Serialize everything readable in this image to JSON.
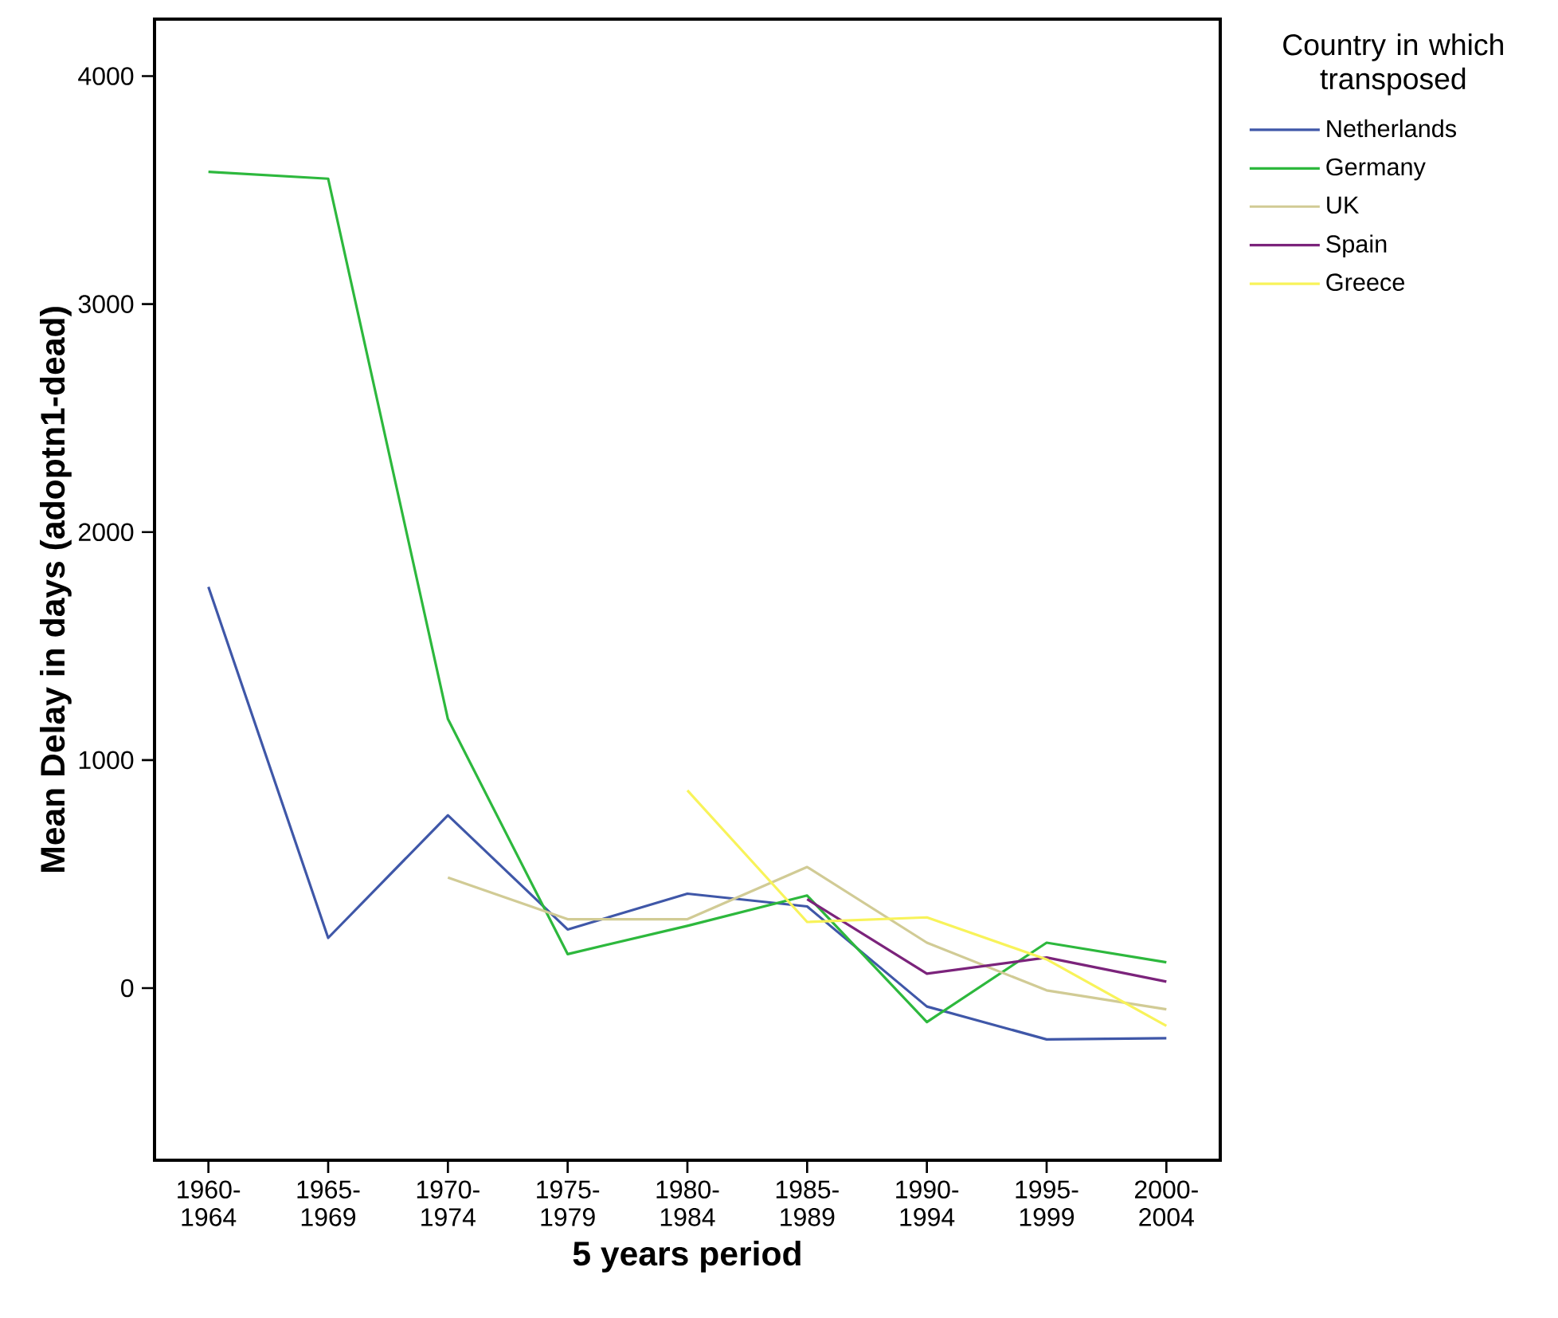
{
  "chart_data": {
    "type": "line",
    "xlabel": "5 years period",
    "ylabel": "Mean Delay in days (adoptn1-dead)",
    "legend_title": "Country in which transposed",
    "categories": [
      "1960-1964",
      "1965-1969",
      "1970-1974",
      "1975-1979",
      "1980-1984",
      "1985-1989",
      "1990-1994",
      "1995-1999",
      "2000-2004"
    ],
    "ylim": [
      -755,
      4250
    ],
    "yticks": [
      0,
      1000,
      2000,
      3000,
      4000
    ],
    "grid": false,
    "legend": "top right",
    "marker": "none",
    "line_style": "solid",
    "series": [
      {
        "name": "Netherlands",
        "color": "#3f57a8",
        "values": [
          1760,
          220,
          758,
          257,
          414,
          358,
          -81,
          -225,
          -220
        ]
      },
      {
        "name": "Germany",
        "color": "#2db83d",
        "values": [
          3580,
          3550,
          1180,
          149,
          273,
          406,
          -149,
          199,
          113
        ]
      },
      {
        "name": "UK",
        "color": "#d1cb95",
        "values": [
          null,
          null,
          485,
          302,
          302,
          531,
          199,
          -10,
          -93
        ]
      },
      {
        "name": "Spain",
        "color": "#7b237b",
        "values": [
          null,
          null,
          null,
          null,
          null,
          390,
          63,
          134,
          28
        ]
      },
      {
        "name": "Greece",
        "color": "#f8f35a",
        "values": [
          null,
          null,
          null,
          null,
          867,
          290,
          310,
          126,
          -166
        ]
      }
    ]
  }
}
